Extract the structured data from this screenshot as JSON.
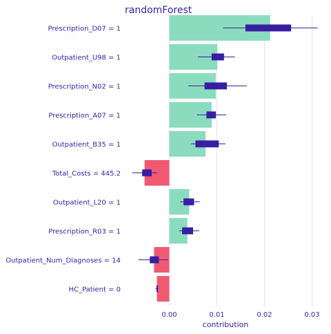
{
  "chart_data": {
    "type": "bar",
    "title": "randomForest",
    "xlabel": "contribution",
    "ylabel": "",
    "xlim": [
      -0.0052,
      0.0322
    ],
    "xticks": [
      0.0,
      0.01,
      0.02,
      0.03
    ],
    "xtick_labels": [
      "0.00",
      "0.01",
      "0.02",
      "0.03"
    ],
    "grid": "vertical",
    "colors": {
      "positive": "#8bdcbe",
      "negative": "#f05a71",
      "boxplot": "#371ea3",
      "text": "#371ea3",
      "grid": "#e6e6e6"
    },
    "categories": [
      "Prescription_D07 = 1",
      "Outpatient_U98 = 1",
      "Prescription_N02 = 1",
      "Prescription_A07 = 1",
      "Outpatient_B35 = 1",
      "Total_Costs = 445.2",
      "Outpatient_L20 = 1",
      "Prescription_R03 = 1",
      "Outpatient_Num_Diagnoses = 14",
      "HC_Patient = 0"
    ],
    "values": [
      0.0212,
      0.0101,
      0.0098,
      0.0089,
      0.0076,
      -0.0052,
      0.0042,
      0.0038,
      -0.0032,
      -0.0026
    ],
    "boxplots": [
      {
        "min": 0.0113,
        "q1": 0.016,
        "q3": 0.0256,
        "max": 0.0312
      },
      {
        "min": 0.006,
        "q1": 0.0089,
        "q3": 0.0115,
        "max": 0.0138
      },
      {
        "min": 0.004,
        "q1": 0.0074,
        "q3": 0.0121,
        "max": 0.0163
      },
      {
        "min": 0.0058,
        "q1": 0.0078,
        "q3": 0.0098,
        "max": 0.012
      },
      {
        "min": 0.0046,
        "q1": 0.0055,
        "q3": 0.0104,
        "max": 0.0118
      },
      {
        "min": -0.0078,
        "q1": -0.0057,
        "q3": -0.0037,
        "max": -0.0026
      },
      {
        "min": 0.0023,
        "q1": 0.003,
        "q3": 0.0052,
        "max": 0.0064
      },
      {
        "min": 0.0021,
        "q1": 0.0027,
        "q3": 0.005,
        "max": 0.0063
      },
      {
        "min": -0.0065,
        "q1": -0.0041,
        "q3": -0.0022,
        "max": -0.0002
      },
      {
        "min": -0.0029,
        "q1": -0.0027,
        "q3": -0.0024,
        "max": -0.0023
      }
    ]
  }
}
